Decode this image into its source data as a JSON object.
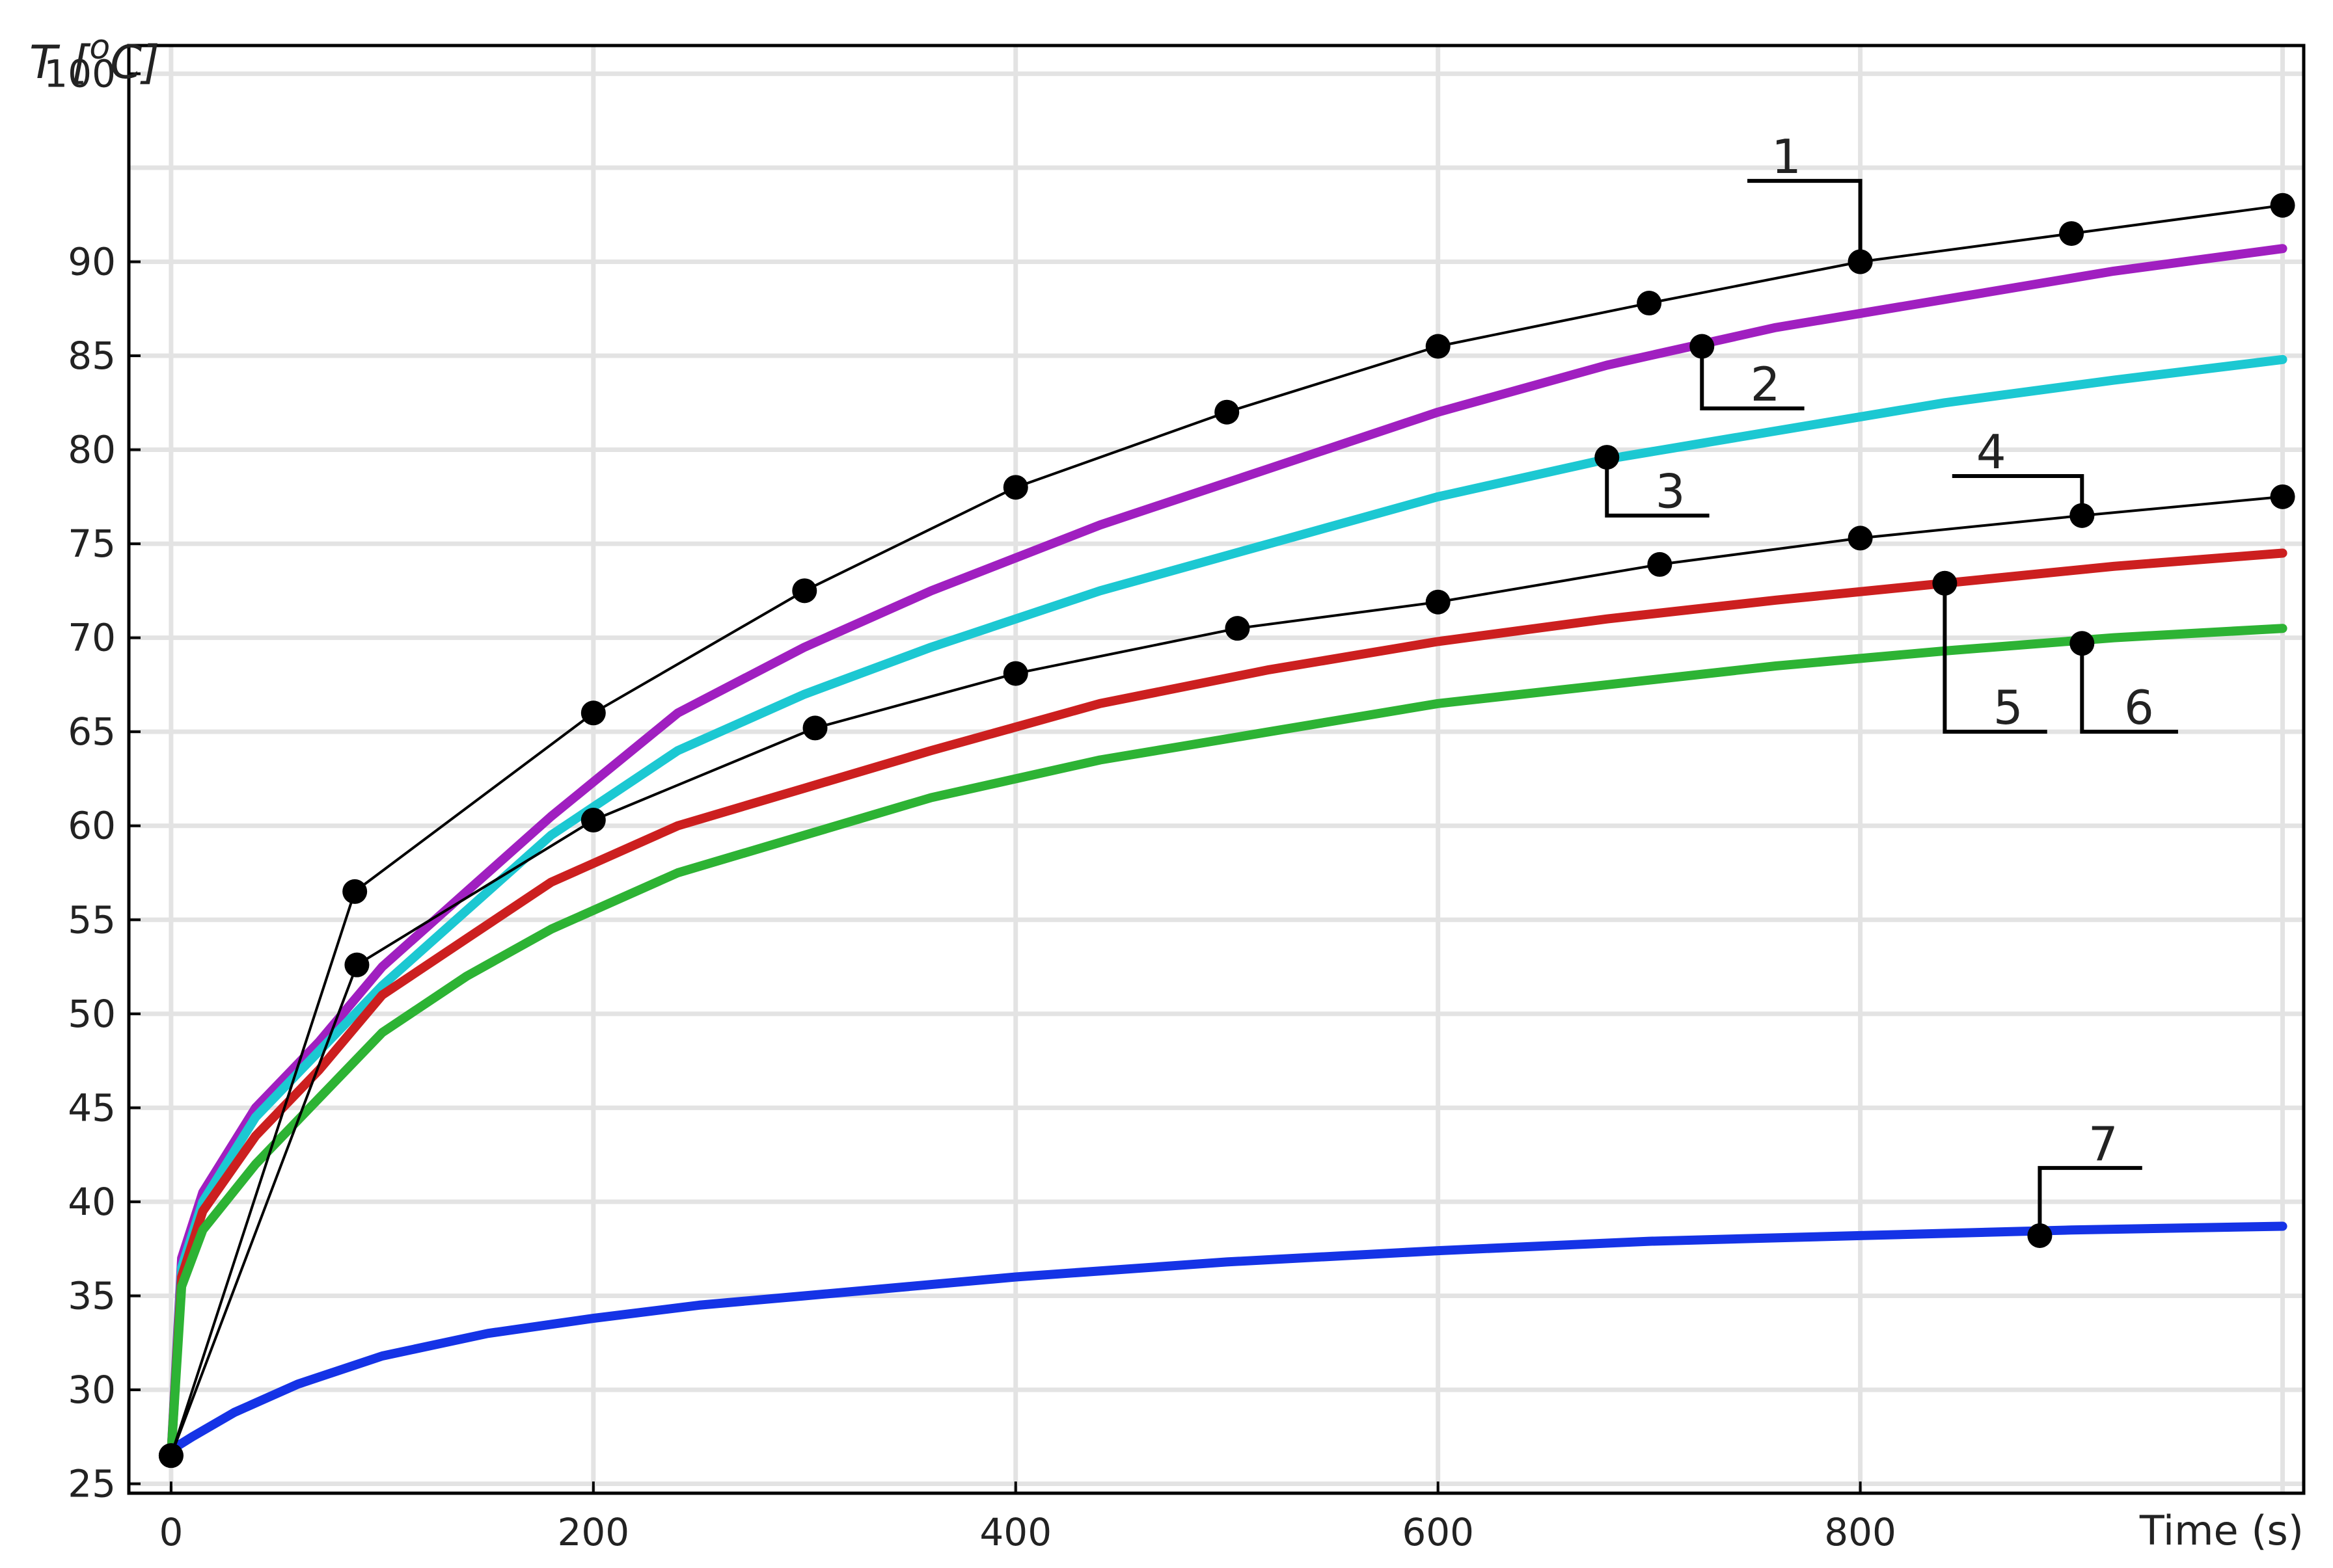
{
  "chart_data": {
    "type": "line",
    "ylabel_main": "T [",
    "ylabel_sup": "o",
    "ylabel_end": "C]",
    "xlabel": "Time (s)",
    "xlim": [
      -20,
      1010
    ],
    "ylim": [
      24.5,
      101.5
    ],
    "x_ticks": [
      0,
      200,
      400,
      600,
      800
    ],
    "y_ticks": [
      25,
      30,
      35,
      40,
      45,
      50,
      55,
      60,
      65,
      70,
      75,
      80,
      85,
      90,
      100
    ],
    "y_gridlines": [
      25,
      30,
      35,
      40,
      45,
      50,
      55,
      60,
      65,
      70,
      75,
      80,
      85,
      90,
      95,
      100
    ],
    "x_gridlines": [
      0,
      200,
      400,
      600,
      800,
      1000
    ],
    "grid": true,
    "series": [
      {
        "label": "1",
        "color": "#000000",
        "style": "thin-markers",
        "x": [
          0,
          87,
          200,
          300,
          400,
          500,
          600,
          700,
          800,
          900,
          1000
        ],
        "y": [
          26.5,
          56.5,
          66.0,
          72.5,
          78.0,
          82.0,
          85.5,
          87.8,
          90.0,
          91.5,
          93.0
        ]
      },
      {
        "label": "2",
        "color": "#a01fc0",
        "style": "thick",
        "x": [
          0,
          5,
          15,
          40,
          70,
          100,
          140,
          180,
          240,
          300,
          360,
          440,
          520,
          600,
          680,
          760,
          840,
          920,
          1000
        ],
        "y": [
          26.5,
          37.0,
          40.5,
          45.0,
          48.5,
          52.5,
          56.5,
          60.5,
          66.0,
          69.5,
          72.5,
          76.0,
          79.0,
          82.0,
          84.5,
          86.5,
          88.0,
          89.5,
          90.7
        ]
      },
      {
        "label": "3",
        "color": "#1cc8d2",
        "style": "thick",
        "x": [
          0,
          5,
          15,
          40,
          70,
          100,
          140,
          180,
          240,
          300,
          360,
          440,
          520,
          600,
          680,
          760,
          840,
          920,
          1000
        ],
        "y": [
          26.5,
          36.5,
          40.0,
          44.5,
          48.0,
          51.5,
          55.5,
          59.5,
          64.0,
          67.0,
          69.5,
          72.5,
          75.0,
          77.5,
          79.5,
          81.0,
          82.5,
          83.7,
          84.8
        ]
      },
      {
        "label": "4",
        "color": "#000000",
        "style": "thin-markers",
        "x": [
          0,
          88,
          200,
          305,
          400,
          505,
          600,
          705,
          800,
          905,
          1000
        ],
        "y": [
          26.5,
          52.6,
          60.3,
          65.2,
          68.1,
          70.5,
          71.9,
          73.9,
          75.3,
          76.5,
          77.5
        ]
      },
      {
        "label": "5",
        "color": "#cc1f1f",
        "style": "thick",
        "x": [
          0,
          5,
          15,
          40,
          70,
          100,
          140,
          180,
          240,
          300,
          360,
          440,
          520,
          600,
          680,
          760,
          840,
          920,
          1000
        ],
        "y": [
          26.5,
          36.0,
          39.5,
          43.5,
          47.0,
          51.0,
          54.0,
          57.0,
          60.0,
          62.0,
          64.0,
          66.5,
          68.3,
          69.8,
          71.0,
          72.0,
          72.9,
          73.8,
          74.5
        ]
      },
      {
        "label": "6",
        "color": "#2db334",
        "style": "thick",
        "x": [
          0,
          5,
          15,
          40,
          70,
          100,
          140,
          180,
          240,
          300,
          360,
          440,
          520,
          600,
          680,
          760,
          840,
          920,
          1000
        ],
        "y": [
          26.5,
          35.5,
          38.5,
          42.0,
          45.5,
          49.0,
          52.0,
          54.5,
          57.5,
          59.5,
          61.5,
          63.5,
          65.0,
          66.5,
          67.5,
          68.5,
          69.3,
          70.0,
          70.5
        ]
      },
      {
        "label": "7",
        "color": "#1533e6",
        "style": "thick",
        "x": [
          0,
          10,
          30,
          60,
          100,
          150,
          200,
          250,
          300,
          400,
          500,
          600,
          700,
          800,
          900,
          1000
        ],
        "y": [
          26.8,
          27.5,
          28.8,
          30.3,
          31.8,
          33.0,
          33.8,
          34.5,
          35.0,
          36.0,
          36.8,
          37.4,
          37.9,
          38.2,
          38.5,
          38.7
        ]
      }
    ],
    "annotations": [
      {
        "text": "1",
        "x": 800,
        "y": 90.0,
        "label_x": 765,
        "label_y": 94.3
      },
      {
        "text": "2",
        "x": 725,
        "y": 85.5,
        "label_x": 755,
        "label_y": 82.2
      },
      {
        "text": "3",
        "x": 680,
        "y": 79.6,
        "label_x": 710,
        "label_y": 76.5
      },
      {
        "text": "4",
        "x": 905,
        "y": 76.5,
        "label_x": 862,
        "label_y": 78.6
      },
      {
        "text": "5",
        "x": 840,
        "y": 72.9,
        "label_x": 870,
        "label_y": 65.0
      },
      {
        "text": "6",
        "x": 905,
        "y": 69.7,
        "label_x": 932,
        "label_y": 65.0
      },
      {
        "text": "7",
        "x": 885,
        "y": 38.2,
        "label_x": 915,
        "label_y": 41.8
      }
    ]
  }
}
